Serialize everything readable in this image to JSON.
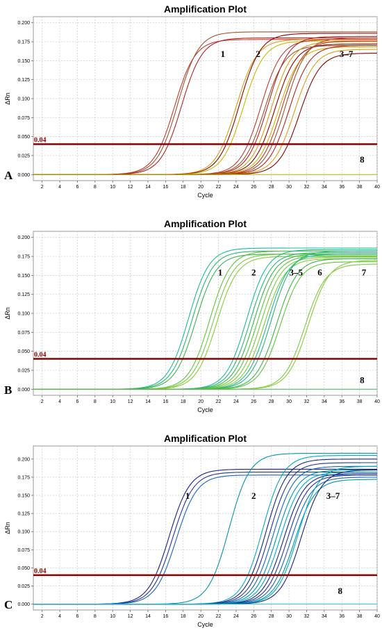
{
  "colors": {
    "threshold": "#8b0000",
    "grid": "#c8c8c8",
    "panel_a": [
      "#c0392b",
      "#a0522d",
      "#b22222",
      "#d4a017",
      "#8b0000",
      "#c9b800",
      "#b5b800"
    ],
    "panel_b": [
      "#1abc9c",
      "#2bb673",
      "#3cb54a",
      "#5cc63a",
      "#7ac943",
      "#88cc33",
      "#4caf50"
    ],
    "panel_c": [
      "#1a237e",
      "#283593",
      "#1565c0",
      "#0097a7",
      "#00acc1",
      "#26c6da"
    ]
  },
  "chart_data": [
    {
      "panel_label": "A",
      "type": "line",
      "title": "Amplification Plot",
      "xlabel": "Cycle",
      "ylabel": "ΔRn",
      "xlim": [
        1,
        40
      ],
      "ylim": [
        -0.008,
        0.208
      ],
      "xticks": [
        "2",
        "4",
        "6",
        "8",
        "10",
        "12",
        "14",
        "16",
        "18",
        "20",
        "22",
        "24",
        "26",
        "28",
        "30",
        "32",
        "34",
        "36",
        "38",
        "40"
      ],
      "yticks": [
        "0.000",
        "0.025",
        "0.050",
        "0.075",
        "0.100",
        "0.125",
        "0.150",
        "0.175",
        "0.200"
      ],
      "threshold": {
        "value": 0.04,
        "label": "0.04"
      },
      "annotations": [
        {
          "text": "1",
          "x": 22.5,
          "y": 0.155
        },
        {
          "text": "2",
          "x": 26.5,
          "y": 0.155
        },
        {
          "text": "3–7",
          "x": 36.5,
          "y": 0.155
        },
        {
          "text": "8",
          "x": 38.3,
          "y": 0.016
        }
      ],
      "series": [
        {
          "group": "1",
          "midpoints": [
            17.0,
            17.4,
            17.8
          ],
          "plateaus": [
            0.178,
            0.188,
            0.18
          ],
          "slope": 0.85
        },
        {
          "group": "2",
          "midpoints": [
            24.0,
            24.4,
            24.8
          ],
          "plateaus": [
            0.178,
            0.186,
            0.176
          ],
          "slope": 0.85
        },
        {
          "group": "3–7",
          "midpoints": [
            26.8,
            27.2,
            27.6,
            28.0,
            28.4,
            28.8,
            29.2,
            29.6,
            30.0,
            30.6,
            31.2
          ],
          "plateaus": [
            0.178,
            0.17,
            0.182,
            0.175,
            0.172,
            0.168,
            0.176,
            0.18,
            0.17,
            0.165,
            0.16
          ],
          "slope": 0.85
        },
        {
          "group": "8",
          "flat": 0.0
        }
      ]
    },
    {
      "panel_label": "B",
      "type": "line",
      "title": "Amplification Plot",
      "xlabel": "Cycle",
      "ylabel": "ΔRn",
      "xlim": [
        1,
        40
      ],
      "ylim": [
        -0.008,
        0.208
      ],
      "xticks": [
        "2",
        "4",
        "6",
        "8",
        "10",
        "12",
        "14",
        "16",
        "18",
        "20",
        "22",
        "24",
        "26",
        "28",
        "30",
        "32",
        "34",
        "36",
        "38",
        "40"
      ],
      "yticks": [
        "0.000",
        "0.025",
        "0.050",
        "0.075",
        "0.100",
        "0.125",
        "0.150",
        "0.175",
        "0.200"
      ],
      "threshold": {
        "value": 0.04,
        "label": "0.04"
      },
      "annotations": [
        {
          "text": "1",
          "x": 22.2,
          "y": 0.15
        },
        {
          "text": "2",
          "x": 26.0,
          "y": 0.15
        },
        {
          "text": "3–5",
          "x": 30.8,
          "y": 0.15
        },
        {
          "text": "6",
          "x": 33.5,
          "y": 0.15
        },
        {
          "text": "7",
          "x": 38.5,
          "y": 0.15
        },
        {
          "text": "8",
          "x": 38.3,
          "y": 0.008
        }
      ],
      "series": [
        {
          "group": "1",
          "midpoints": [
            18.6,
            19.0,
            19.4
          ],
          "plateaus": [
            0.186,
            0.182,
            0.178
          ],
          "slope": 0.85
        },
        {
          "group": "2",
          "midpoints": [
            21.0,
            21.4,
            21.8
          ],
          "plateaus": [
            0.182,
            0.178,
            0.175
          ],
          "slope": 0.85
        },
        {
          "group": "3–5",
          "midpoints": [
            25.2,
            25.6,
            26.0,
            26.4,
            26.8,
            27.2,
            27.6,
            28.0
          ],
          "plateaus": [
            0.184,
            0.18,
            0.178,
            0.176,
            0.174,
            0.172,
            0.178,
            0.182
          ],
          "slope": 0.85
        },
        {
          "group": "6",
          "midpoints": [
            28.6,
            29.0
          ],
          "plateaus": [
            0.172,
            0.168
          ],
          "slope": 0.85
        },
        {
          "group": "7",
          "midpoints": [
            31.8,
            32.2
          ],
          "plateaus": [
            0.165,
            0.17
          ],
          "slope": 0.85
        },
        {
          "group": "8",
          "flat": 0.0
        }
      ]
    },
    {
      "panel_label": "C",
      "type": "line",
      "title": "Amplification Plot",
      "xlabel": "Cycle",
      "ylabel": "ΔRn",
      "xlim": [
        1,
        40
      ],
      "ylim": [
        -0.008,
        0.218
      ],
      "xticks": [
        "2",
        "4",
        "6",
        "8",
        "10",
        "12",
        "14",
        "16",
        "18",
        "20",
        "22",
        "24",
        "26",
        "28",
        "30",
        "32",
        "34",
        "36",
        "38",
        "40"
      ],
      "yticks": [
        "0.000",
        "0.025",
        "0.050",
        "0.075",
        "0.100",
        "0.125",
        "0.150",
        "0.175",
        "0.200"
      ],
      "threshold": {
        "value": 0.04,
        "label": "0.04"
      },
      "annotations": [
        {
          "text": "1",
          "x": 18.5,
          "y": 0.145
        },
        {
          "text": "2",
          "x": 26.0,
          "y": 0.145
        },
        {
          "text": "3–7",
          "x": 35.0,
          "y": 0.145
        },
        {
          "text": "8",
          "x": 35.8,
          "y": 0.014
        }
      ],
      "series": [
        {
          "group": "1",
          "midpoints": [
            16.4,
            16.8,
            17.2
          ],
          "plateaus": [
            0.186,
            0.182,
            0.178
          ],
          "slope": 0.85
        },
        {
          "group": "2",
          "midpoints": [
            23.2
          ],
          "plateaus": [
            0.208
          ],
          "slope": 0.85
        },
        {
          "group": "3–7",
          "midpoints": [
            27.0,
            27.4,
            27.8,
            28.2,
            28.6,
            29.0,
            29.4,
            29.8,
            30.2,
            30.6,
            31.0,
            31.4
          ],
          "plateaus": [
            0.205,
            0.2,
            0.195,
            0.19,
            0.185,
            0.182,
            0.18,
            0.178,
            0.175,
            0.172,
            0.19,
            0.185
          ],
          "slope": 0.85
        },
        {
          "group": "8",
          "flat": 0.0
        }
      ]
    }
  ]
}
